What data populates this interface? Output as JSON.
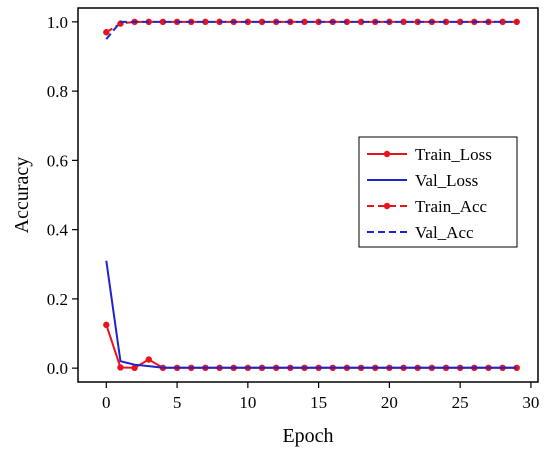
{
  "chart_data": {
    "type": "line",
    "xlabel": "Epoch",
    "ylabel": "Accuracy",
    "xlim": [
      -2,
      30.5
    ],
    "ylim": [
      -0.04,
      1.04
    ],
    "xticks": [
      0,
      5,
      10,
      15,
      20,
      25,
      30
    ],
    "yticks": [
      0.0,
      0.2,
      0.4,
      0.6,
      0.8,
      1.0
    ],
    "xtick_labels": [
      "0",
      "5",
      "10",
      "15",
      "20",
      "25",
      "30"
    ],
    "ytick_labels": [
      "0.0",
      "0.2",
      "0.4",
      "0.6",
      "0.8",
      "1.0"
    ],
    "grid": false,
    "legend_position": "right-middle",
    "x": [
      0,
      1,
      2,
      3,
      4,
      5,
      6,
      7,
      8,
      9,
      10,
      11,
      12,
      13,
      14,
      15,
      16,
      17,
      18,
      19,
      20,
      21,
      22,
      23,
      24,
      25,
      26,
      27,
      28,
      29
    ],
    "series": [
      {
        "name": "Train_Loss",
        "color": "#e8141c",
        "style": "solid-markers",
        "values": [
          0.125,
          0.002,
          0.001,
          0.025,
          0.001,
          0.001,
          0.001,
          0.001,
          0.001,
          0.001,
          0.001,
          0.001,
          0.001,
          0.001,
          0.001,
          0.001,
          0.001,
          0.001,
          0.001,
          0.001,
          0.001,
          0.001,
          0.001,
          0.001,
          0.001,
          0.001,
          0.001,
          0.001,
          0.001,
          0.001
        ]
      },
      {
        "name": "Val_Loss",
        "color": "#1f24c8",
        "style": "solid",
        "values": [
          0.31,
          0.02,
          0.01,
          0.006,
          0.001,
          0.001,
          0.001,
          0.001,
          0.001,
          0.001,
          0.001,
          0.001,
          0.001,
          0.001,
          0.001,
          0.001,
          0.001,
          0.001,
          0.001,
          0.001,
          0.001,
          0.001,
          0.001,
          0.001,
          0.001,
          0.001,
          0.001,
          0.001,
          0.001,
          0.001
        ]
      },
      {
        "name": "Train_Acc",
        "color": "#e8141c",
        "style": "dashed-markers",
        "values": [
          0.97,
          0.995,
          1.0,
          1.0,
          1.0,
          1.0,
          1.0,
          1.0,
          1.0,
          1.0,
          1.0,
          1.0,
          1.0,
          1.0,
          1.0,
          1.0,
          1.0,
          1.0,
          1.0,
          1.0,
          1.0,
          1.0,
          1.0,
          1.0,
          1.0,
          1.0,
          1.0,
          1.0,
          1.0,
          1.0
        ]
      },
      {
        "name": "Val_Acc",
        "color": "#1f24c8",
        "style": "dashed",
        "values": [
          0.95,
          1.0,
          1.0,
          1.0,
          1.0,
          1.0,
          1.0,
          1.0,
          1.0,
          1.0,
          1.0,
          1.0,
          1.0,
          1.0,
          1.0,
          1.0,
          1.0,
          1.0,
          1.0,
          1.0,
          1.0,
          1.0,
          1.0,
          1.0,
          1.0,
          1.0,
          1.0,
          1.0,
          1.0,
          1.0
        ]
      }
    ]
  }
}
